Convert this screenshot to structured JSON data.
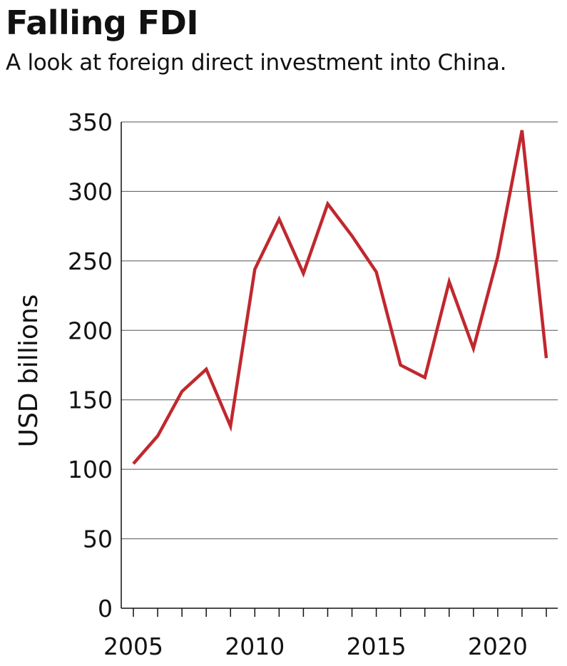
{
  "header": {
    "title": "Falling FDI",
    "subtitle": "A look at foreign direct investment into China."
  },
  "colors": {
    "line": "#c0282e",
    "grid": "#555555",
    "axis": "#111111"
  },
  "chart_data": {
    "type": "line",
    "title": "Falling FDI",
    "subtitle": "A look at foreign direct investment into China.",
    "xlabel": "",
    "ylabel": "USD billions",
    "xlim": [
      2005,
      2022
    ],
    "ylim": [
      0,
      350
    ],
    "yticks": [
      0,
      50,
      100,
      150,
      200,
      250,
      300,
      350
    ],
    "xticks": [
      2005,
      2010,
      2015,
      2020
    ],
    "grid": "horizontal",
    "legend": "none",
    "series": [
      {
        "x": [
          2005,
          2006,
          2007,
          2008,
          2009,
          2010,
          2011,
          2012,
          2013,
          2014,
          2015,
          2016,
          2017,
          2018,
          2019,
          2020,
          2021,
          2022
        ],
        "values": [
          104,
          124,
          156,
          172,
          131,
          244,
          280,
          241,
          291,
          268,
          242,
          175,
          166,
          235,
          187,
          253,
          344,
          180
        ]
      }
    ]
  }
}
